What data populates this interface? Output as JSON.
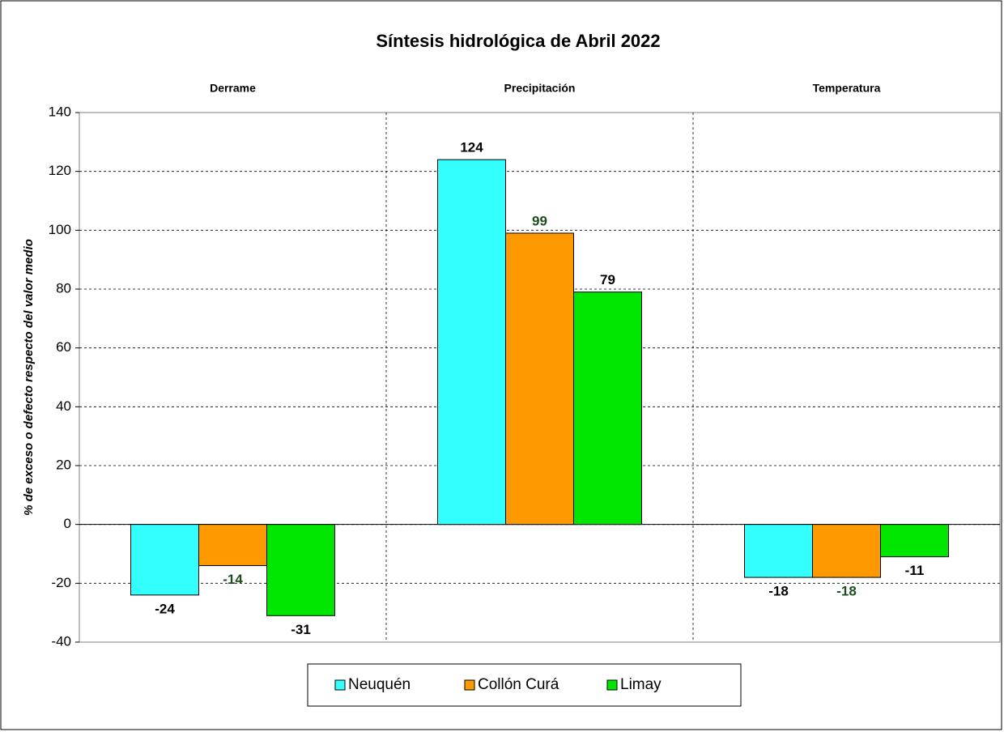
{
  "chart_data": {
    "type": "bar",
    "title": "Síntesis hidrológica de Abril 2022",
    "y_label": "% de exceso o defecto respecto del valor medio",
    "categories": [
      "Derrame",
      "Precipitación",
      "Temperatura"
    ],
    "series": [
      {
        "name": "Neuquén",
        "color": "#33ffff",
        "label_color": "#000000",
        "values": [
          -24,
          124,
          -18
        ]
      },
      {
        "name": "Collón Curá",
        "color": "#ff9900",
        "label_color": "#1e4d1e",
        "values": [
          -14,
          99,
          -18
        ]
      },
      {
        "name": "Limay",
        "color": "#00e600",
        "label_color": "#000000",
        "values": [
          -31,
          79,
          -11
        ]
      }
    ],
    "ylim": [
      -40,
      140
    ],
    "yticks": [
      -40,
      -20,
      0,
      20,
      40,
      60,
      80,
      100,
      120,
      140
    ],
    "grid": true,
    "legend": "bottom"
  }
}
